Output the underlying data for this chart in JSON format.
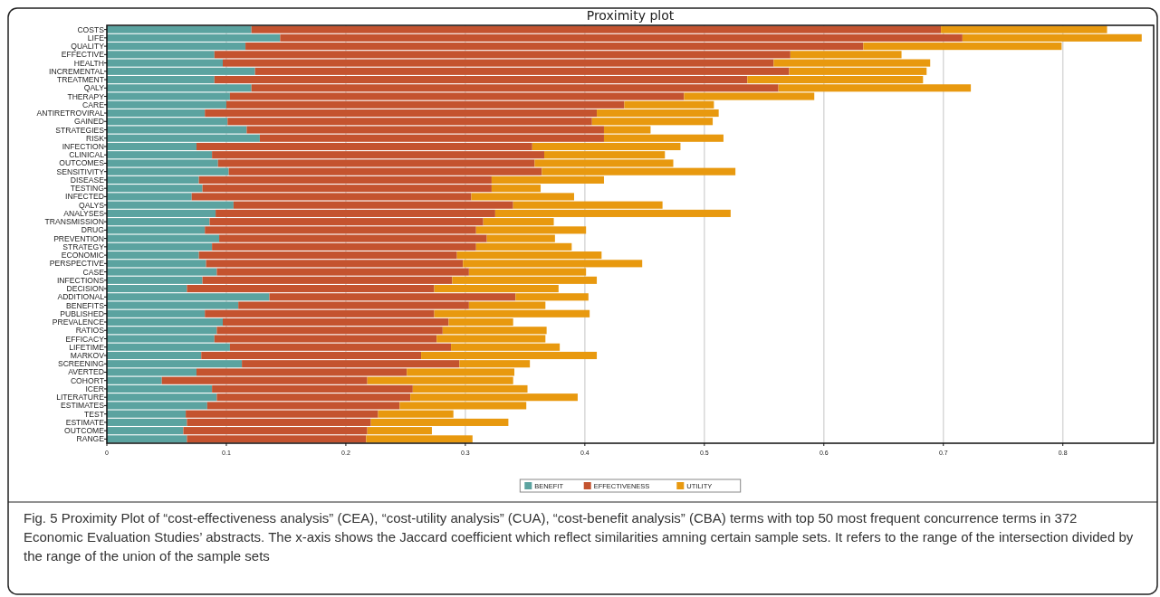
{
  "chart_data": {
    "type": "bar",
    "orientation": "horizontal",
    "stacked": true,
    "title": "Proximity plot",
    "categories": [
      "COSTS",
      "LIFE",
      "QUALITY",
      "EFFECTIVE",
      "HEALTH",
      "INCREMENTAL",
      "TREATMENT",
      "QALY",
      "THERAPY",
      "CARE",
      "ANTIRETROVIRAL",
      "GAINED",
      "STRATEGIES",
      "RISK",
      "INFECTION",
      "CLINICAL",
      "OUTCOMES",
      "SENSITIVITY",
      "DISEASE",
      "TESTING",
      "INFECTED",
      "QALYS",
      "ANALYSES",
      "TRANSMISSION",
      "DRUG",
      "PREVENTION",
      "STRATEGY",
      "ECONOMIC",
      "PERSPECTIVE",
      "CASE",
      "INFECTIONS",
      "DECISION",
      "ADDITIONAL",
      "BENEFITS",
      "PUBLISHED",
      "PREVALENCE",
      "RATIOS",
      "EFFICACY",
      "LIFETIME",
      "MARKOV",
      "SCREENING",
      "AVERTED",
      "COHORT",
      "ICER",
      "LITERATURE",
      "ESTIMATES",
      "TEST",
      "ESTIMATE",
      "OUTCOME",
      "RANGE"
    ],
    "series": [
      {
        "name": "BENEFIT",
        "color": "#5ba3a0",
        "values": [
          0.121,
          0.145,
          0.116,
          0.09,
          0.097,
          0.124,
          0.09,
          0.121,
          0.103,
          0.1,
          0.082,
          0.101,
          0.117,
          0.128,
          0.075,
          0.088,
          0.093,
          0.102,
          0.077,
          0.08,
          0.071,
          0.106,
          0.091,
          0.086,
          0.082,
          0.094,
          0.088,
          0.077,
          0.083,
          0.092,
          0.08,
          0.067,
          0.136,
          0.11,
          0.082,
          0.097,
          0.092,
          0.09,
          0.103,
          0.079,
          0.113,
          0.075,
          0.046,
          0.088,
          0.092,
          0.084,
          0.066,
          0.067,
          0.064,
          0.067
        ]
      },
      {
        "name": "EFFECTIVENESS",
        "color": "#c4532f",
        "values": [
          0.577,
          0.571,
          0.517,
          0.482,
          0.461,
          0.447,
          0.446,
          0.441,
          0.38,
          0.333,
          0.328,
          0.305,
          0.299,
          0.288,
          0.281,
          0.278,
          0.265,
          0.262,
          0.245,
          0.242,
          0.234,
          0.234,
          0.234,
          0.229,
          0.227,
          0.224,
          0.221,
          0.216,
          0.215,
          0.211,
          0.209,
          0.207,
          0.206,
          0.193,
          0.192,
          0.189,
          0.189,
          0.186,
          0.185,
          0.184,
          0.182,
          0.176,
          0.172,
          0.168,
          0.162,
          0.161,
          0.161,
          0.154,
          0.154,
          0.15
        ]
      },
      {
        "name": "UTILITY",
        "color": "#e8990f",
        "values": [
          0.139,
          0.15,
          0.166,
          0.093,
          0.131,
          0.115,
          0.147,
          0.161,
          0.109,
          0.075,
          0.102,
          0.101,
          0.039,
          0.1,
          0.124,
          0.101,
          0.116,
          0.162,
          0.094,
          0.041,
          0.086,
          0.125,
          0.197,
          0.059,
          0.092,
          0.057,
          0.08,
          0.121,
          0.15,
          0.098,
          0.121,
          0.104,
          0.061,
          0.064,
          0.13,
          0.054,
          0.087,
          0.091,
          0.091,
          0.147,
          0.059,
          0.09,
          0.122,
          0.096,
          0.14,
          0.106,
          0.063,
          0.115,
          0.054,
          0.089
        ]
      }
    ],
    "xlim": [
      0,
      0.876
    ],
    "xticks": [
      0,
      0.1,
      0.2,
      0.3,
      0.4,
      0.5,
      0.6,
      0.7,
      0.8
    ],
    "grid": "x",
    "legend": "bottom",
    "annotations": [
      "Fig. 5 Proximity Plot of “cost-effectiveness analysis” (CEA), “cost-utility analysis” (CUA), “cost-benefit analysis” (CBA) terms with top 50 most frequent concurrence terms in 372 Economic Evaluation Studies’ abstracts. The x-axis shows the Jaccard coefficient which reflect similarities amning certain sample sets. It refers to the range of the intersection divided by the range of the union of the sample sets"
    ]
  }
}
